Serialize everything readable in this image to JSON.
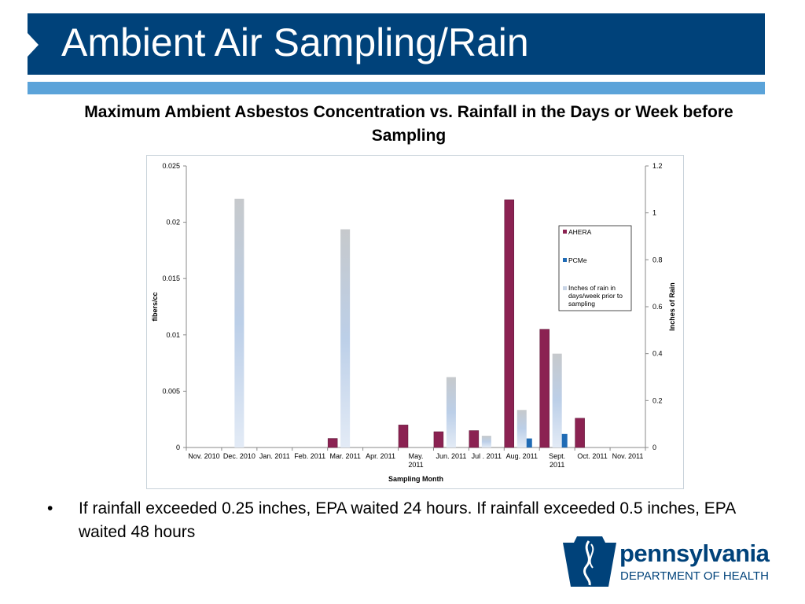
{
  "slide": {
    "title": "Ambient Air Sampling/Rain",
    "subtitle": "Maximum Ambient Asbestos Concentration vs. Rainfall in the Days or Week before Sampling",
    "bullet": "If rainfall exceeded 0.25 inches, EPA waited 24 hours. If rainfall exceeded 0.5 inches, EPA waited 48 hours",
    "logo_word": "pennsylvania",
    "logo_sub": "DEPARTMENT OF HEALTH"
  },
  "colors": {
    "title_bar": "#00427a",
    "accent_bar": "#5ba3d9",
    "ahera": "#8b2252",
    "pcme": "#1f6bb5",
    "rain": "#c8d4e6"
  },
  "chart_data": {
    "type": "bar",
    "xlabel": "Sampling Month",
    "ylabel": "fibers/cc",
    "y2label": "Inches of Rain",
    "ylim": [
      0,
      0.025
    ],
    "y2lim": [
      0,
      1.2
    ],
    "yticks": [
      "0",
      "0.005",
      "0.01",
      "0.015",
      "0.02",
      "0.025"
    ],
    "y2ticks": [
      "0",
      "0.2",
      "0.4",
      "0.6",
      "0.8",
      "1",
      "1.2"
    ],
    "categories": [
      [
        "Nov. 2010"
      ],
      [
        "Dec. 2010"
      ],
      [
        "Jan. 2011"
      ],
      [
        "Feb. 2011"
      ],
      [
        "Mar. 2011"
      ],
      [
        "Apr. 2011"
      ],
      [
        "May.",
        "2011"
      ],
      [
        "Jun. 2011"
      ],
      [
        "Jul . 2011"
      ],
      [
        "Aug. 2011"
      ],
      [
        "Sept.",
        "2011"
      ],
      [
        "Oct. 2011"
      ],
      [
        "Nov. 2011"
      ]
    ],
    "grid": false,
    "legend_position": "upper-right",
    "series": [
      {
        "name": "AHERA",
        "axis": "left",
        "values": [
          0,
          0,
          0,
          0,
          0.0008,
          0,
          0.002,
          0.0014,
          0.0015,
          0.022,
          0.0105,
          0.0026,
          0
        ]
      },
      {
        "name": "PCMe",
        "axis": "left",
        "values": [
          0,
          0,
          0,
          0,
          0,
          0,
          0,
          0,
          0,
          0.0008,
          0.0012,
          0,
          0
        ]
      },
      {
        "name": "Inches of rain in days/week prior to sampling",
        "legend_lines": [
          "Inches of rain in",
          "days/week prior to",
          "sampling"
        ],
        "axis": "right",
        "values": [
          0,
          1.06,
          0,
          0,
          0.93,
          0,
          0,
          0.3,
          0.05,
          0.16,
          0.4,
          0,
          0
        ]
      }
    ]
  }
}
